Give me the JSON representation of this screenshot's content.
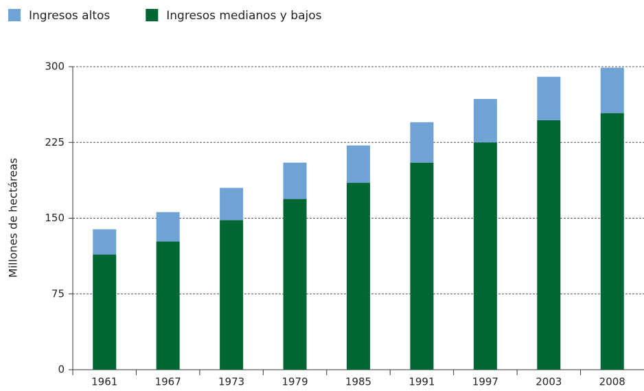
{
  "chart_data": {
    "type": "stacked_bar",
    "y_label": "Millones de hectáreas",
    "categories": [
      "1961",
      "1967",
      "1973",
      "1979",
      "1985",
      "1991",
      "1997",
      "2003",
      "2008"
    ],
    "series": [
      {
        "name": "Ingresos altos",
        "color": "#6fa3d5",
        "values": [
          25,
          29,
          32,
          36,
          37,
          40,
          43,
          43,
          45
        ]
      },
      {
        "name": "Ingresos medianos y bajos",
        "color": "#006633",
        "values": [
          114,
          127,
          148,
          169,
          185,
          205,
          225,
          247,
          254
        ]
      }
    ],
    "ylim": [
      0,
      300
    ],
    "yticks": [
      0,
      75,
      150,
      225,
      300
    ],
    "grid": true
  }
}
